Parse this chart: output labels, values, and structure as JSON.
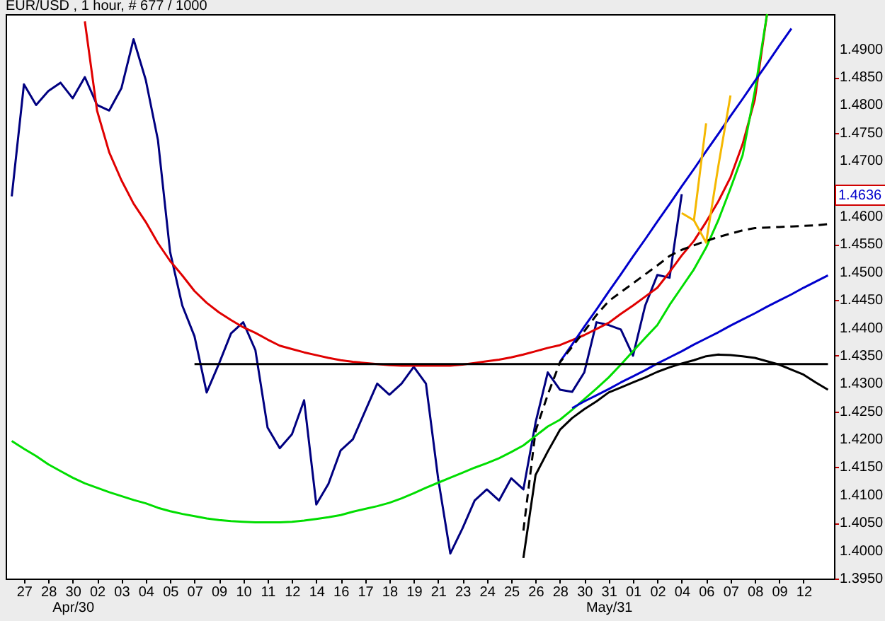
{
  "chart_data": {
    "type": "line",
    "title": "EUR/USD , 1 hour, # 677 / 1000",
    "categories": [
      null,
      "27",
      null,
      "28",
      null,
      "30\nApr/30",
      null,
      "02",
      null,
      "03",
      null,
      "04",
      null,
      "05",
      null,
      "07",
      null,
      "09",
      null,
      "10",
      null,
      "11",
      null,
      "12",
      null,
      "14",
      null,
      "16",
      null,
      "17",
      null,
      "18",
      null,
      "19",
      null,
      "21",
      null,
      "23",
      null,
      "24",
      null,
      "25",
      null,
      "26",
      null,
      "28",
      null,
      "30",
      null,
      "31\nMay/31",
      null,
      "01",
      null,
      "02",
      null,
      "04",
      null,
      "06",
      null,
      "07",
      null,
      "08",
      null,
      "09",
      null,
      "12",
      null,
      null
    ],
    "ylim": [
      1.395,
      1.4963
    ],
    "yticks": [
      {
        "value": 1.395,
        "label": "1.3950"
      },
      {
        "value": 1.4,
        "label": "1.4000"
      },
      {
        "value": 1.405,
        "label": "1.4050"
      },
      {
        "value": 1.41,
        "label": "1.4100"
      },
      {
        "value": 1.415,
        "label": "1.4150"
      },
      {
        "value": 1.42,
        "label": "1.4200"
      },
      {
        "value": 1.425,
        "label": "1.4250"
      },
      {
        "value": 1.43,
        "label": "1.4300"
      },
      {
        "value": 1.435,
        "label": "1.4350"
      },
      {
        "value": 1.44,
        "label": "1.4400"
      },
      {
        "value": 1.445,
        "label": "1.4450"
      },
      {
        "value": 1.45,
        "label": "1.4500"
      },
      {
        "value": 1.455,
        "label": "1.4550"
      },
      {
        "value": 1.46,
        "label": "1.4600"
      },
      {
        "value": 1.465,
        "label": null
      },
      {
        "value": 1.47,
        "label": "1.4700"
      },
      {
        "value": 1.475,
        "label": "1.4750"
      },
      {
        "value": 1.48,
        "label": "1.4800"
      },
      {
        "value": 1.485,
        "label": "1.4850"
      },
      {
        "value": 1.49,
        "label": "1.4900"
      }
    ],
    "grid": false,
    "marker": "none",
    "annotations": [
      "1.4636"
    ],
    "series": [
      {
        "color": "#000080",
        "values": [
          1.4636,
          1.4837,
          1.48,
          1.4825,
          1.484,
          1.4812,
          1.485,
          1.48,
          1.479,
          1.483,
          1.4918,
          1.4845,
          1.4737,
          1.4536,
          1.444,
          1.4385,
          1.4284,
          1.4335,
          1.439,
          1.441,
          1.436,
          1.4221,
          1.4184,
          1.4209,
          1.427,
          1.4083,
          1.412,
          1.418,
          1.42,
          1.425,
          1.43,
          1.428,
          1.43,
          1.433,
          1.43,
          1.413,
          1.3995,
          1.404,
          1.409,
          1.411,
          1.409,
          1.413,
          1.411,
          1.423,
          1.432,
          1.4289,
          1.4285,
          1.432,
          1.441,
          1.4405,
          1.4397,
          1.435,
          1.444,
          1.4495,
          1.449,
          1.464,
          null,
          null,
          null,
          null,
          null,
          null,
          null,
          null,
          null,
          null,
          null,
          null
        ]
      },
      {
        "color": "#e00000",
        "values": [
          null,
          null,
          null,
          null,
          null,
          null,
          1.495,
          1.479,
          1.4715,
          1.4665,
          1.4623,
          1.459,
          1.4552,
          1.452,
          1.4494,
          1.4466,
          1.4445,
          1.4428,
          1.4414,
          1.4401,
          1.4391,
          1.4379,
          1.4368,
          1.4362,
          1.4356,
          1.4351,
          1.4346,
          1.4342,
          1.4339,
          1.4337,
          1.4335,
          1.4333,
          1.4332,
          1.4332,
          1.4332,
          1.4332,
          1.4332,
          1.4334,
          1.4337,
          1.434,
          1.4343,
          1.4347,
          1.4352,
          1.4358,
          1.4364,
          1.4369,
          1.4378,
          1.4387,
          1.4398,
          1.4409,
          1.4425,
          1.444,
          1.4456,
          1.4472,
          1.45,
          1.453,
          1.4556,
          1.459,
          1.4627,
          1.467,
          1.473,
          1.481,
          1.4963,
          null,
          null,
          null,
          null,
          null
        ]
      },
      {
        "color": "#00dd00",
        "values": [
          1.4197,
          1.4183,
          1.417,
          1.4155,
          1.4143,
          1.4131,
          1.4121,
          1.4113,
          1.4105,
          1.4098,
          1.4091,
          1.4085,
          1.4077,
          1.4071,
          1.4066,
          1.4062,
          1.4058,
          1.4055,
          1.4053,
          1.4052,
          1.4051,
          1.4051,
          1.4051,
          1.4052,
          1.4054,
          1.4057,
          1.406,
          1.4064,
          1.407,
          1.4075,
          1.408,
          1.4086,
          1.4094,
          1.4103,
          1.4113,
          1.4122,
          1.4131,
          1.414,
          1.4149,
          1.4157,
          1.4166,
          1.4177,
          1.4189,
          1.4206,
          1.4223,
          1.4235,
          1.4253,
          1.4272,
          1.4291,
          1.4311,
          1.4334,
          1.4358,
          1.4382,
          1.4405,
          1.4441,
          1.4473,
          1.4505,
          1.4544,
          1.4593,
          1.465,
          1.471,
          1.4825,
          1.4963,
          null,
          null,
          null,
          null,
          null
        ]
      },
      {
        "color": "#0000cc",
        "values": [
          null,
          null,
          null,
          null,
          null,
          null,
          null,
          null,
          null,
          null,
          null,
          null,
          null,
          null,
          null,
          null,
          null,
          null,
          null,
          null,
          null,
          null,
          null,
          null,
          null,
          null,
          null,
          null,
          null,
          null,
          null,
          null,
          null,
          null,
          null,
          null,
          null,
          null,
          null,
          null,
          null,
          null,
          null,
          null,
          null,
          1.4339,
          1.437,
          1.4402,
          1.4433,
          1.4465,
          1.4496,
          1.4528,
          1.4559,
          1.4591,
          1.4622,
          1.4654,
          1.4685,
          1.4717,
          1.4748,
          1.478,
          1.4811,
          1.4843,
          1.4874,
          1.4906,
          1.4937,
          null,
          null,
          null
        ]
      },
      {
        "color": "#0000cc",
        "values": [
          null,
          null,
          null,
          null,
          null,
          null,
          null,
          null,
          null,
          null,
          null,
          null,
          null,
          null,
          null,
          null,
          null,
          null,
          null,
          null,
          null,
          null,
          null,
          null,
          null,
          null,
          null,
          null,
          null,
          null,
          null,
          null,
          null,
          null,
          null,
          null,
          null,
          null,
          null,
          null,
          null,
          null,
          null,
          null,
          null,
          null,
          1.4256,
          1.4268,
          1.4279,
          1.429,
          1.4302,
          1.4313,
          1.4324,
          1.4336,
          1.4347,
          1.4358,
          1.437,
          1.4381,
          1.4392,
          1.4404,
          1.4415,
          1.4426,
          1.4438,
          1.4449,
          1.446,
          1.4472,
          1.4483,
          1.4494
        ]
      },
      {
        "color": "#000000",
        "values": [
          null,
          null,
          null,
          null,
          null,
          null,
          null,
          null,
          null,
          null,
          null,
          null,
          null,
          null,
          null,
          1.4335,
          1.4335,
          1.4335,
          1.4335,
          1.4335,
          1.4335,
          1.4335,
          1.4335,
          1.4335,
          1.4335,
          1.4335,
          1.4335,
          1.4335,
          1.4335,
          1.4335,
          1.4335,
          1.4335,
          1.4335,
          1.4335,
          1.4335,
          1.4335,
          1.4335,
          1.4335,
          1.4335,
          1.4335,
          1.4335,
          1.4335,
          1.4335,
          1.4335,
          1.4335,
          1.4335,
          1.4335,
          1.4335,
          1.4335,
          1.4335,
          1.4335,
          1.4335,
          1.4335,
          1.4335,
          1.4335,
          1.4335,
          1.4335,
          1.4335,
          1.4335,
          1.4335,
          1.4335,
          1.4335,
          1.4335,
          1.4335,
          1.4335,
          1.4335,
          1.4335,
          1.4335
        ]
      },
      {
        "color": "#000000",
        "line_style": "dashed",
        "values": [
          null,
          null,
          null,
          null,
          null,
          null,
          null,
          null,
          null,
          null,
          null,
          null,
          null,
          null,
          null,
          null,
          null,
          null,
          null,
          null,
          null,
          null,
          null,
          null,
          null,
          null,
          null,
          null,
          null,
          null,
          null,
          null,
          null,
          null,
          null,
          null,
          null,
          null,
          null,
          null,
          null,
          null,
          1.4036,
          1.4215,
          1.428,
          1.4338,
          1.4366,
          1.4394,
          1.4423,
          1.4448,
          1.4464,
          1.448,
          1.4496,
          1.4512,
          1.4529,
          1.454,
          1.4548,
          1.4556,
          1.4563,
          1.4569,
          1.4575,
          1.4579,
          1.458,
          1.4581,
          1.4582,
          1.4583,
          1.4584,
          1.4586
        ]
      },
      {
        "color": "#000000",
        "values": [
          null,
          null,
          null,
          null,
          null,
          null,
          null,
          null,
          null,
          null,
          null,
          null,
          null,
          null,
          null,
          null,
          null,
          null,
          null,
          null,
          null,
          null,
          null,
          null,
          null,
          null,
          null,
          null,
          null,
          null,
          null,
          null,
          null,
          null,
          null,
          null,
          null,
          null,
          null,
          null,
          null,
          null,
          1.3987,
          1.4136,
          1.4178,
          1.4217,
          1.4238,
          1.4254,
          1.4268,
          1.4284,
          1.4293,
          1.4302,
          1.4311,
          1.4321,
          1.4329,
          1.4336,
          1.4342,
          1.4349,
          1.4352,
          1.4351,
          1.4349,
          1.4346,
          1.434,
          1.4334,
          1.4325,
          1.4316,
          1.4302,
          1.4289
        ]
      },
      {
        "color": "#f5b800",
        "values": [
          null,
          null,
          null,
          null,
          null,
          null,
          null,
          null,
          null,
          null,
          null,
          null,
          null,
          null,
          null,
          null,
          null,
          null,
          null,
          null,
          null,
          null,
          null,
          null,
          null,
          null,
          null,
          null,
          null,
          null,
          null,
          null,
          null,
          null,
          null,
          null,
          null,
          null,
          null,
          null,
          null,
          null,
          null,
          null,
          null,
          null,
          null,
          null,
          null,
          null,
          null,
          null,
          null,
          null,
          null,
          1.4606,
          1.4593,
          1.4767,
          null,
          null,
          null,
          null,
          null,
          null,
          null,
          null,
          null,
          null
        ]
      },
      {
        "color": "#f5b800",
        "values": [
          null,
          null,
          null,
          null,
          null,
          null,
          null,
          null,
          null,
          null,
          null,
          null,
          null,
          null,
          null,
          null,
          null,
          null,
          null,
          null,
          null,
          null,
          null,
          null,
          null,
          null,
          null,
          null,
          null,
          null,
          null,
          null,
          null,
          null,
          null,
          null,
          null,
          null,
          null,
          null,
          null,
          null,
          null,
          null,
          null,
          null,
          null,
          null,
          null,
          null,
          null,
          null,
          null,
          null,
          null,
          null,
          1.4593,
          1.4553,
          1.469,
          1.4817,
          null,
          null,
          null,
          null,
          null,
          null,
          null,
          null
        ]
      }
    ]
  }
}
